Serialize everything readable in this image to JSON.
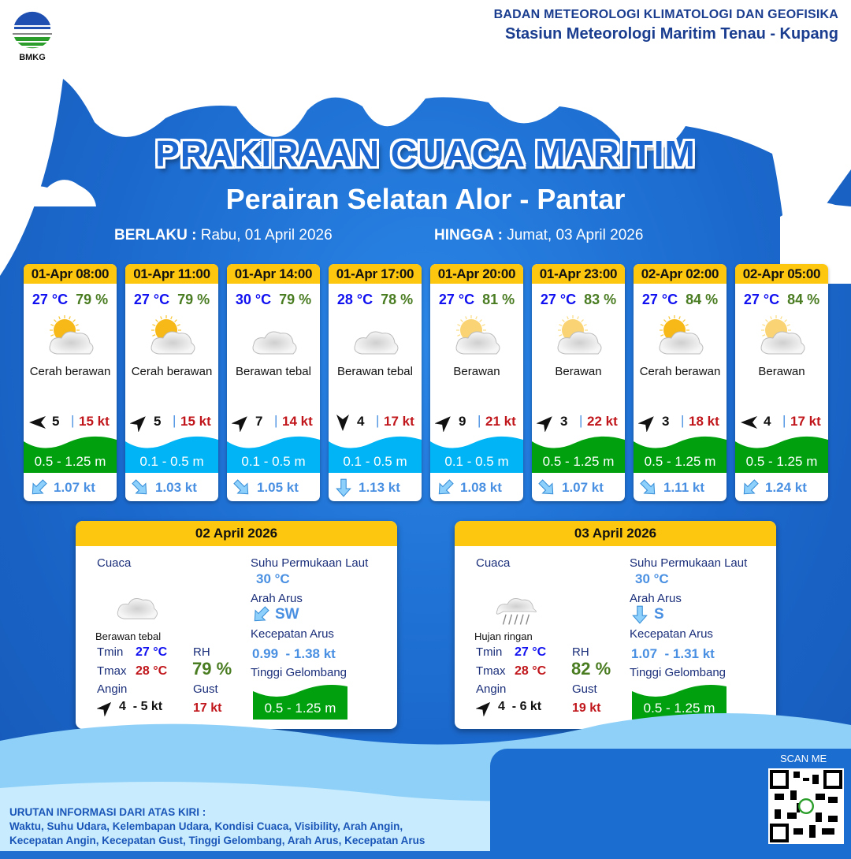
{
  "header": {
    "org": "BADAN METEOROLOGI KLIMATOLOGI DAN GEOFISIKA",
    "station": "Stasiun Meteorologi Maritim Tenau - Kupang",
    "logo_text": "BMKG"
  },
  "title": "PRAKIRAAN CUACA MARITIM",
  "area": "Perairan Selatan Alor - Pantar",
  "validity": {
    "from_label": "BERLAKU :",
    "from": "Rabu, 01 April 2026",
    "to_label": "HINGGA :",
    "to": "Jumat, 03 April 2026"
  },
  "colors": {
    "header_yellow": "#fdc70f",
    "wave_green": "#00a00e",
    "wave_cyan": "#00b4f5",
    "temp_blue": "#1010f0",
    "rh_green": "#4a7c22",
    "gust_red": "#c0151a",
    "current_blue": "#4a90e2"
  },
  "forecasts": [
    {
      "time": "01-Apr 08:00",
      "temp": "27 °C",
      "rh": "79 %",
      "icon": "partly-cloudy-icon",
      "cond": "Cerah berawan",
      "wind_to_deg": 270,
      "wind": "5",
      "gust": "15 kt",
      "wave": "0.5 - 1.25 m",
      "wave_class": "moderate",
      "current_to_deg": 225,
      "current": "1.07 kt"
    },
    {
      "time": "01-Apr 11:00",
      "temp": "27 °C",
      "rh": "79 %",
      "icon": "partly-cloudy-icon",
      "cond": "Cerah berawan",
      "wind_to_deg": 45,
      "wind": "5",
      "gust": "15 kt",
      "wave": "0.1 - 0.5 m",
      "wave_class": "low",
      "current_to_deg": 135,
      "current": "1.03 kt"
    },
    {
      "time": "01-Apr 14:00",
      "temp": "30 °C",
      "rh": "79 %",
      "icon": "overcast-icon",
      "cond": "Berawan tebal",
      "wind_to_deg": 45,
      "wind": "7",
      "gust": "14 kt",
      "wave": "0.1 - 0.5 m",
      "wave_class": "low",
      "current_to_deg": 135,
      "current": "1.05 kt"
    },
    {
      "time": "01-Apr 17:00",
      "temp": "28 °C",
      "rh": "78 %",
      "icon": "overcast-icon",
      "cond": "Berawan tebal",
      "wind_to_deg": 180,
      "wind": "4",
      "gust": "17 kt",
      "wave": "0.1 - 0.5 m",
      "wave_class": "low",
      "current_to_deg": 180,
      "current": "1.13 kt"
    },
    {
      "time": "01-Apr 20:00",
      "temp": "27 °C",
      "rh": "81 %",
      "icon": "cloudy-icon",
      "cond": "Berawan",
      "wind_to_deg": 45,
      "wind": "9",
      "gust": "21 kt",
      "wave": "0.1 - 0.5 m",
      "wave_class": "low",
      "current_to_deg": 225,
      "current": "1.08 kt"
    },
    {
      "time": "01-Apr 23:00",
      "temp": "27 °C",
      "rh": "83 %",
      "icon": "cloudy-icon",
      "cond": "Berawan",
      "wind_to_deg": 45,
      "wind": "3",
      "gust": "22 kt",
      "wave": "0.5 - 1.25 m",
      "wave_class": "moderate",
      "current_to_deg": 135,
      "current": "1.07 kt"
    },
    {
      "time": "02-Apr 02:00",
      "temp": "27 °C",
      "rh": "84 %",
      "icon": "partly-cloudy-icon",
      "cond": "Cerah berawan",
      "wind_to_deg": 45,
      "wind": "3",
      "gust": "18 kt",
      "wave": "0.5 - 1.25 m",
      "wave_class": "moderate",
      "current_to_deg": 135,
      "current": "1.11 kt"
    },
    {
      "time": "02-Apr 05:00",
      "temp": "27 °C",
      "rh": "84 %",
      "icon": "cloudy-icon",
      "cond": "Berawan",
      "wind_to_deg": 270,
      "wind": "4",
      "gust": "17 kt",
      "wave": "0.5 - 1.25 m",
      "wave_class": "moderate",
      "current_to_deg": 225,
      "current": "1.24 kt"
    }
  ],
  "labels": {
    "cuaca": "Cuaca",
    "sst": "Suhu Permukaan Laut",
    "arah_arus": "Arah Arus",
    "kec_arus": "Kecepatan Arus",
    "tinggi": "Tinggi Gelombang",
    "tmin": "Tmin",
    "tmax": "Tmax",
    "rh": "RH",
    "angin": "Angin",
    "gust": "Gust"
  },
  "daily": [
    {
      "date": "02 April 2026",
      "icon": "overcast-icon",
      "cond": "Berawan tebal",
      "tmin": "27 °C",
      "tmax": "28 °C",
      "rh": "79 %",
      "wind_to_deg": 45,
      "wind": "4  - 5 kt",
      "gust": "17 kt",
      "sst": "30 °C",
      "current_dir": "SW",
      "current_to_deg": 225,
      "current": "0.99  - 1.38 kt",
      "wave": "0.5 - 1.25 m"
    },
    {
      "date": "03 April 2026",
      "icon": "light-rain-icon",
      "cond": "Hujan ringan",
      "tmin": "27 °C",
      "tmax": "28 °C",
      "rh": "82 %",
      "wind_to_deg": 45,
      "wind": "4  - 6 kt",
      "gust": "19 kt",
      "sst": "30 °C",
      "current_dir": "S",
      "current_to_deg": 180,
      "current": "1.07  - 1.31 kt",
      "wave": "0.5 - 1.25 m"
    }
  ],
  "footer": {
    "heading": "URUTAN INFORMASI DARI ATAS KIRI :",
    "line1": "Waktu, Suhu Udara, Kelembapan Udara, Kondisi Cuaca, Visibility, Arah Angin,",
    "line2": "Kecepatan Angin, Kecepatan Gust, Tinggi Gelombang, Arah Arus, Kecepatan Arus",
    "scan": "SCAN ME"
  }
}
